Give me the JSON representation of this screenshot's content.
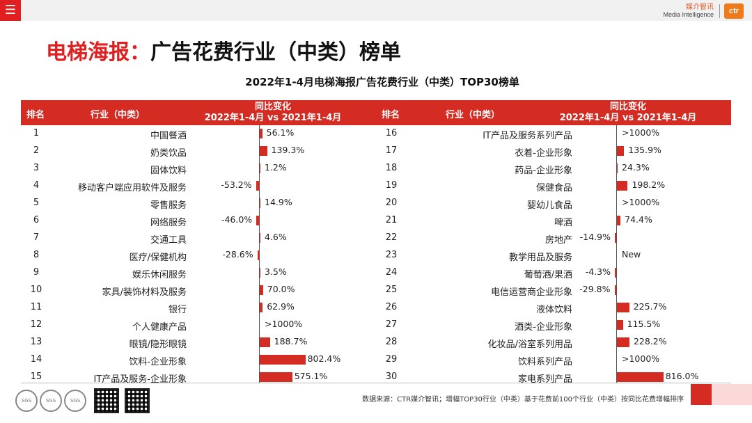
{
  "topbar": {
    "menu_icon": "hamburger-icon",
    "brand_cn": "媒介智讯",
    "brand_en": "Media Intelligence",
    "brand_logo": "ctr"
  },
  "title": {
    "part1": "电梯海报：",
    "part2": "广告花费行业（中类）榜单"
  },
  "subtitle": "2022年1-4月电梯海报广告花费行业（中类）TOP30榜单",
  "header": {
    "rank": "排名",
    "industry": "行业（中类）",
    "change_line1": "同比变化",
    "change_line2": "2022年1-4月 vs 2021年1-4月"
  },
  "rows": [
    {
      "rank": "1",
      "industry": "中国餐酒",
      "change": "56.1%",
      "value": 56.1
    },
    {
      "rank": "2",
      "industry": "奶类饮品",
      "change": "139.3%",
      "value": 139.3
    },
    {
      "rank": "3",
      "industry": "固体饮料",
      "change": "1.2%",
      "value": 1.2
    },
    {
      "rank": "4",
      "industry": "移动客户端应用软件及服务",
      "change": "-53.2%",
      "value": -53.2
    },
    {
      "rank": "5",
      "industry": "零售服务",
      "change": "14.9%",
      "value": 14.9
    },
    {
      "rank": "6",
      "industry": "网络服务",
      "change": "-46.0%",
      "value": -46.0
    },
    {
      "rank": "7",
      "industry": "交通工具",
      "change": "4.6%",
      "value": 4.6
    },
    {
      "rank": "8",
      "industry": "医疗/保健机构",
      "change": "-28.6%",
      "value": -28.6
    },
    {
      "rank": "9",
      "industry": "娱乐休闲服务",
      "change": "3.5%",
      "value": 3.5
    },
    {
      "rank": "10",
      "industry": "家具/装饰材料及服务",
      "change": "70.0%",
      "value": 70.0
    },
    {
      "rank": "11",
      "industry": "银行",
      "change": "62.9%",
      "value": 62.9
    },
    {
      "rank": "12",
      "industry": "个人健康产品",
      "change": ">1000%",
      "value": null
    },
    {
      "rank": "13",
      "industry": "眼镜/隐形眼镜",
      "change": "188.7%",
      "value": 188.7
    },
    {
      "rank": "14",
      "industry": "饮料-企业形象",
      "change": "802.4%",
      "value": 802.4
    },
    {
      "rank": "15",
      "industry": "IT产品及服务-企业形象",
      "change": "575.1%",
      "value": 575.1
    },
    {
      "rank": "16",
      "industry": "IT产品及服务系列产品",
      "change": ">1000%",
      "value": null
    },
    {
      "rank": "17",
      "industry": "衣着-企业形象",
      "change": "135.9%",
      "value": 135.9
    },
    {
      "rank": "18",
      "industry": "药品-企业形象",
      "change": "24.3%",
      "value": 24.3
    },
    {
      "rank": "19",
      "industry": "保健食品",
      "change": "198.2%",
      "value": 198.2
    },
    {
      "rank": "20",
      "industry": "婴幼儿食品",
      "change": ">1000%",
      "value": null
    },
    {
      "rank": "21",
      "industry": "啤酒",
      "change": "74.4%",
      "value": 74.4
    },
    {
      "rank": "22",
      "industry": "房地产",
      "change": "-14.9%",
      "value": -14.9
    },
    {
      "rank": "23",
      "industry": "教学用品及服务",
      "change": "New",
      "value": null
    },
    {
      "rank": "24",
      "industry": "葡萄酒/果酒",
      "change": "-4.3%",
      "value": -4.3
    },
    {
      "rank": "25",
      "industry": "电信运营商企业形象",
      "change": "-29.8%",
      "value": -29.8
    },
    {
      "rank": "26",
      "industry": "液体饮料",
      "change": "225.7%",
      "value": 225.7
    },
    {
      "rank": "27",
      "industry": "酒类-企业形象",
      "change": "115.5%",
      "value": 115.5
    },
    {
      "rank": "28",
      "industry": "化妆品/浴室系列用品",
      "change": "228.2%",
      "value": 228.2
    },
    {
      "rank": "29",
      "industry": "饮料系列产品",
      "change": ">1000%",
      "value": null
    },
    {
      "rank": "30",
      "industry": "家电系列产品",
      "change": "816.0%",
      "value": 816.0
    }
  ],
  "footer": {
    "source": "数据来源：CTR媒介智讯；增幅TOP30行业（中类）基于花费前100个行业（中类）按同比花费增幅排序",
    "cert_label": "SGS"
  },
  "colors": {
    "accent": "#d42b22",
    "brand": "#ef7a1a"
  }
}
